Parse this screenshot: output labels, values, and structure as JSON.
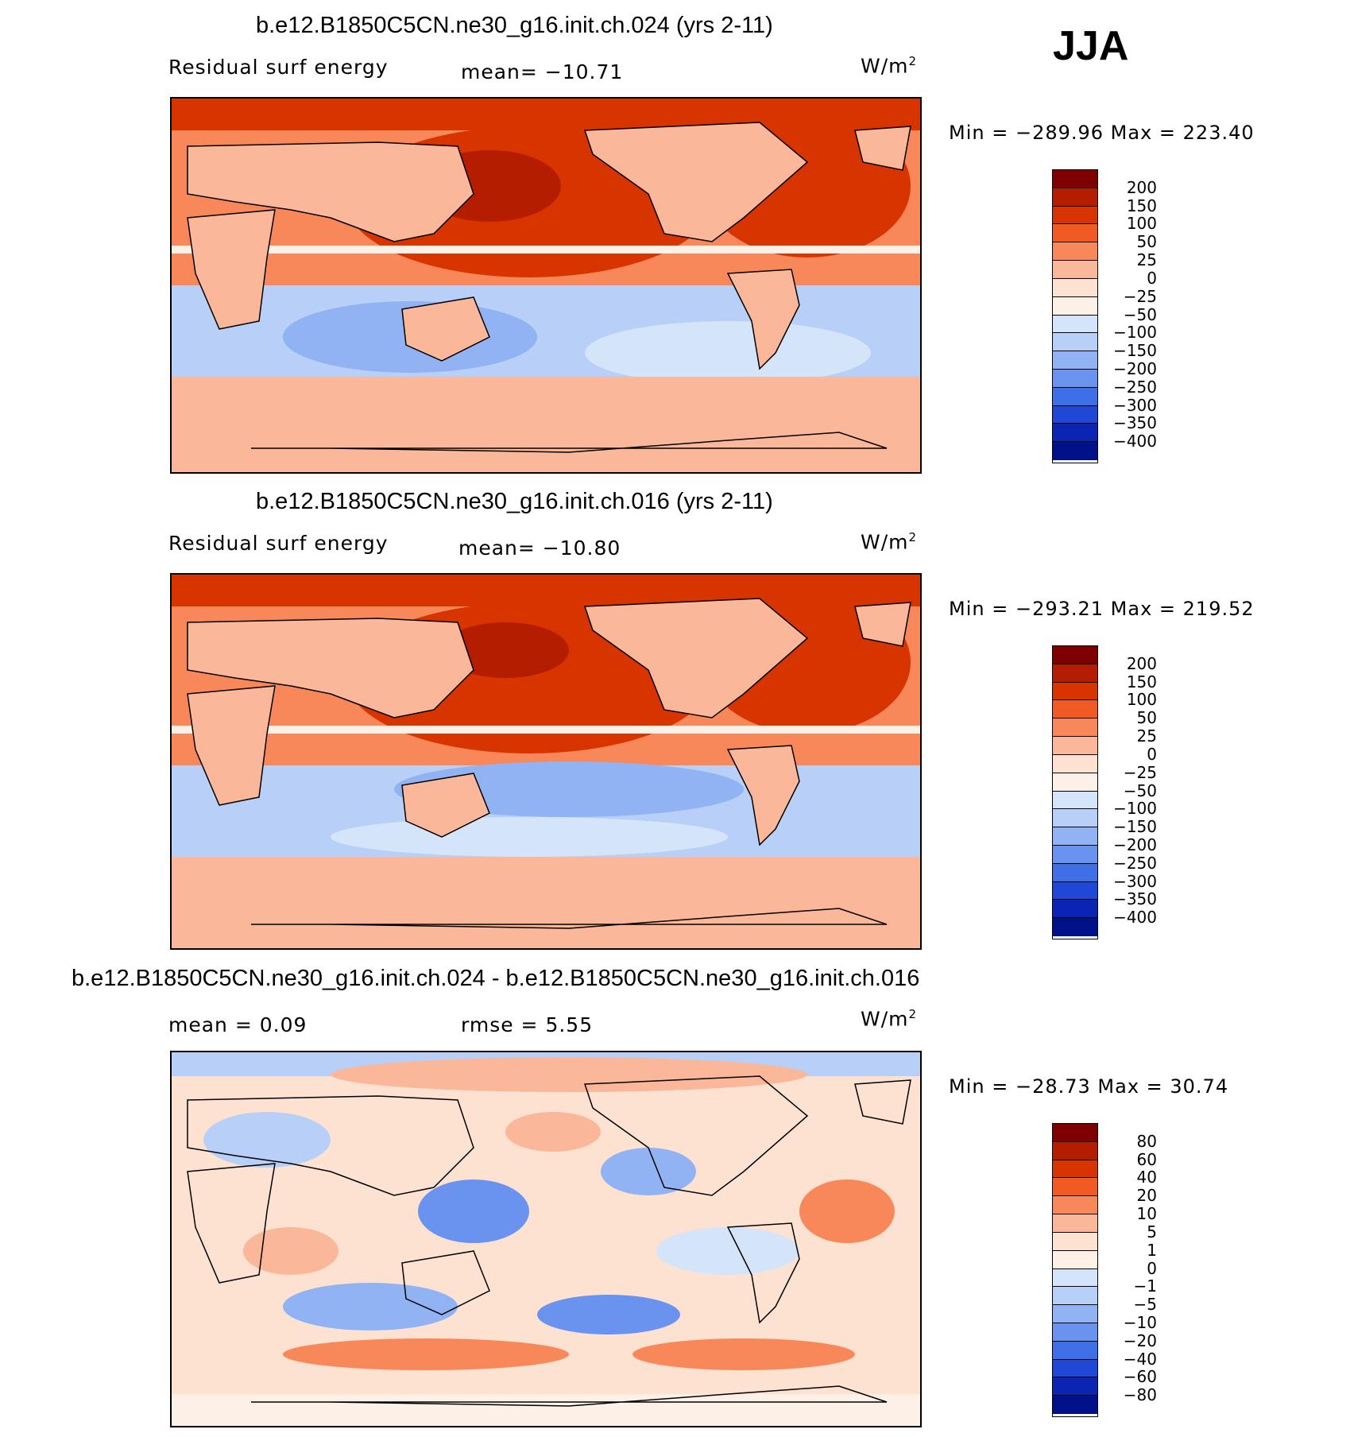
{
  "season": "JJA",
  "units": "W/m",
  "units_sup": "2",
  "chart_data": [
    {
      "type": "heatmap",
      "title": "b.e12.B1850C5CN.ne30_g16.init.ch.024 (yrs 2-11)",
      "variable": "Residual surf energy",
      "mean_label": "mean=  −10.71",
      "min_max": "Min = −289.96 Max = 223.40",
      "colorbar_levels": [
        "200",
        "150",
        "100",
        "50",
        "25",
        "0",
        "−25",
        "−50",
        "−100",
        "−150",
        "−200",
        "−250",
        "−300",
        "−350",
        "−400"
      ],
      "colorbar_colors": [
        "#7f0000",
        "#b51d00",
        "#d83400",
        "#f15a22",
        "#f8875a",
        "#fbb79a",
        "#fde2d2",
        "#fdf0e6",
        "#d4e5f9",
        "#b8d0f7",
        "#91b3f3",
        "#6a93ef",
        "#3f6fe6",
        "#1f48d6",
        "#0a24b3",
        "#00118a"
      ],
      "stats": {
        "mean": -10.71,
        "min": -289.96,
        "max": 223.4
      }
    },
    {
      "type": "heatmap",
      "title": "b.e12.B1850C5CN.ne30_g16.init.ch.016 (yrs 2-11)",
      "variable": "Residual surf energy",
      "mean_label": "mean=  −10.80",
      "min_max": "Min = −293.21 Max = 219.52",
      "colorbar_levels": [
        "200",
        "150",
        "100",
        "50",
        "25",
        "0",
        "−25",
        "−50",
        "−100",
        "−150",
        "−200",
        "−250",
        "−300",
        "−350",
        "−400"
      ],
      "colorbar_colors": [
        "#7f0000",
        "#b51d00",
        "#d83400",
        "#f15a22",
        "#f8875a",
        "#fbb79a",
        "#fde2d2",
        "#fdf0e6",
        "#d4e5f9",
        "#b8d0f7",
        "#91b3f3",
        "#6a93ef",
        "#3f6fe6",
        "#1f48d6",
        "#0a24b3",
        "#00118a"
      ],
      "stats": {
        "mean": -10.8,
        "min": -293.21,
        "max": 219.52
      }
    },
    {
      "type": "heatmap",
      "title": "b.e12.B1850C5CN.ne30_g16.init.ch.024 - b.e12.B1850C5CN.ne30_g16.init.ch.016",
      "mean_label": "mean =     0.09",
      "rmse_label": "rmse =     5.55",
      "min_max": "Min = −28.73 Max =  30.74",
      "colorbar_levels": [
        "80",
        "60",
        "40",
        "20",
        "10",
        "5",
        "1",
        "0",
        "−1",
        "−5",
        "−10",
        "−20",
        "−40",
        "−60",
        "−80"
      ],
      "colorbar_colors": [
        "#7f0000",
        "#b51d00",
        "#d83400",
        "#f15a22",
        "#f8875a",
        "#fbb79a",
        "#fde2d2",
        "#fdf0e6",
        "#d4e5f9",
        "#b8d0f7",
        "#91b3f3",
        "#6a93ef",
        "#3f6fe6",
        "#1f48d6",
        "#0a24b3",
        "#00118a"
      ],
      "stats": {
        "mean": 0.09,
        "rmse": 5.55,
        "min": -28.73,
        "max": 30.74
      }
    }
  ]
}
